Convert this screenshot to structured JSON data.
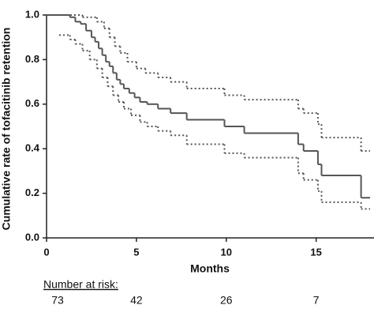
{
  "chart_data": {
    "type": "line",
    "step": "post",
    "xlabel": "Months",
    "ylabel": "Cumulative rate of tofacitinib retention",
    "xlim": [
      0,
      18
    ],
    "ylim": [
      0,
      1
    ],
    "xticks": [
      0,
      5,
      10,
      15
    ],
    "yticks": [
      {
        "value": 0,
        "label": "0.0"
      },
      0.2,
      0.4,
      0.6,
      0.8,
      {
        "value": 1,
        "label": "1.0"
      }
    ],
    "series": [
      {
        "color": "#555555",
        "linestyle": "solid",
        "x": [
          0,
          1.3,
          1.6,
          1.9,
          2.2,
          2.5,
          2.7,
          2.9,
          3.1,
          3.3,
          3.5,
          3.7,
          3.9,
          4.1,
          4.3,
          4.6,
          4.9,
          5.2,
          5.6,
          6.2,
          6.9,
          7.8,
          9.9,
          11,
          14,
          14.3,
          15.1,
          15.3,
          17.5
        ],
        "values": [
          1.0,
          0.99,
          0.97,
          0.96,
          0.93,
          0.9,
          0.88,
          0.85,
          0.82,
          0.79,
          0.77,
          0.74,
          0.71,
          0.69,
          0.67,
          0.65,
          0.63,
          0.61,
          0.6,
          0.58,
          0.56,
          0.53,
          0.5,
          0.47,
          0.42,
          0.39,
          0.33,
          0.28,
          0.18
        ]
      },
      {
        "color": "#555555",
        "linestyle": "dotted",
        "x": [
          0,
          2.0,
          2.8,
          3.2,
          3.5,
          3.8,
          4.1,
          4.5,
          5.0,
          5.5,
          6.2,
          6.9,
          7.8,
          9.9,
          11,
          14,
          14.3,
          15.1,
          15.3,
          17.5
        ],
        "values": [
          1.0,
          0.99,
          0.97,
          0.94,
          0.9,
          0.86,
          0.83,
          0.79,
          0.76,
          0.74,
          0.72,
          0.7,
          0.67,
          0.64,
          0.62,
          0.58,
          0.56,
          0.51,
          0.45,
          0.39
        ]
      },
      {
        "color": "#555555",
        "linestyle": "dotted",
        "x": [
          0.7,
          1.3,
          1.6,
          2.0,
          2.4,
          2.8,
          3.1,
          3.4,
          3.7,
          4.0,
          4.3,
          4.7,
          5.2,
          5.6,
          6.2,
          6.9,
          7.8,
          9.9,
          11,
          14,
          14.3,
          15.1,
          15.3,
          17.5
        ],
        "values": [
          0.91,
          0.89,
          0.87,
          0.84,
          0.8,
          0.76,
          0.72,
          0.68,
          0.64,
          0.61,
          0.58,
          0.55,
          0.52,
          0.5,
          0.48,
          0.46,
          0.42,
          0.38,
          0.36,
          0.29,
          0.26,
          0.21,
          0.16,
          0.13
        ]
      }
    ],
    "risk_table": {
      "title": "Number at risk:",
      "x": [
        0,
        5,
        10,
        15
      ],
      "values": [
        73,
        42,
        26,
        7
      ]
    }
  }
}
